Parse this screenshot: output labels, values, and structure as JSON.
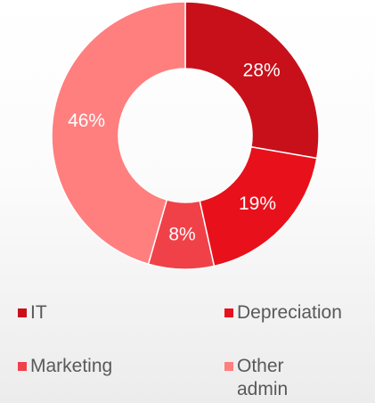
{
  "chart_data": {
    "type": "donut",
    "categories": [
      "IT",
      "Depreciation",
      "Marketing",
      "Other admin"
    ],
    "values": [
      28,
      19,
      8,
      46
    ],
    "value_labels": [
      "28%",
      "19%",
      "8%",
      "46%"
    ],
    "colors": [
      "#c8101a",
      "#e8111b",
      "#f04149",
      "#ff7f7f"
    ],
    "legend": "bottom"
  }
}
